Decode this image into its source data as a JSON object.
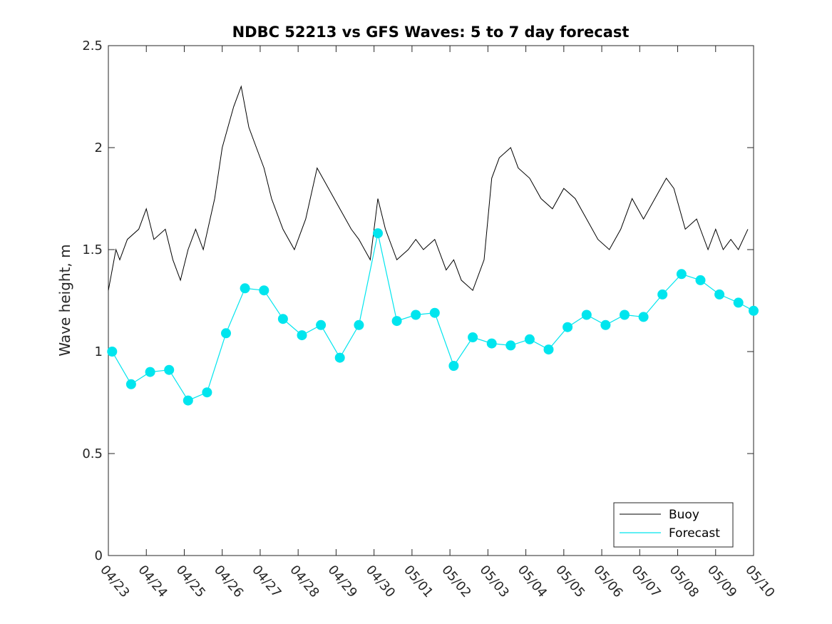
{
  "chart_data": {
    "type": "line",
    "title": "NDBC 52213 vs GFS Waves: 5 to 7 day forecast",
    "xlabel": "",
    "ylabel": "Wave height, m",
    "xlim": [
      "04/23",
      "05/10"
    ],
    "ylim": [
      0,
      2.5
    ],
    "x_ticks": [
      "04/23",
      "04/24",
      "04/25",
      "04/26",
      "04/27",
      "04/28",
      "04/29",
      "04/30",
      "05/01",
      "05/02",
      "05/03",
      "05/04",
      "05/05",
      "05/06",
      "05/07",
      "05/08",
      "05/09",
      "05/10"
    ],
    "y_ticks": [
      "0",
      "0.5",
      "1",
      "1.5",
      "2",
      "2.5"
    ],
    "legend": {
      "position": "bottom-right",
      "entries": [
        "Buoy",
        "Forecast"
      ]
    },
    "colors": {
      "buoy": "#000000",
      "forecast": "#00e5ee",
      "axes": "#262626"
    },
    "series": [
      {
        "name": "Buoy",
        "x_days": [
          0.0,
          0.1,
          0.2,
          0.3,
          0.5,
          0.8,
          1.0,
          1.2,
          1.5,
          1.7,
          1.9,
          2.1,
          2.3,
          2.5,
          2.8,
          3.0,
          3.3,
          3.5,
          3.7,
          3.9,
          4.1,
          4.3,
          4.6,
          4.9,
          5.2,
          5.5,
          5.8,
          6.1,
          6.4,
          6.6,
          6.9,
          7.1,
          7.3,
          7.6,
          7.9,
          8.1,
          8.3,
          8.6,
          8.9,
          9.1,
          9.3,
          9.6,
          9.9,
          10.1,
          10.3,
          10.6,
          10.8,
          11.1,
          11.4,
          11.7,
          12.0,
          12.3,
          12.6,
          12.9,
          13.2,
          13.5,
          13.8,
          14.1,
          14.4,
          14.7,
          14.9,
          15.2,
          15.5,
          15.8,
          16.0,
          16.2,
          16.4,
          16.6,
          16.85
        ],
        "values": [
          1.3,
          1.4,
          1.5,
          1.45,
          1.55,
          1.6,
          1.7,
          1.55,
          1.6,
          1.45,
          1.35,
          1.5,
          1.6,
          1.5,
          1.75,
          2.0,
          2.2,
          2.3,
          2.1,
          2.0,
          1.9,
          1.75,
          1.6,
          1.5,
          1.65,
          1.9,
          1.8,
          1.7,
          1.6,
          1.55,
          1.45,
          1.75,
          1.6,
          1.45,
          1.5,
          1.55,
          1.5,
          1.55,
          1.4,
          1.45,
          1.35,
          1.3,
          1.45,
          1.85,
          1.95,
          2.0,
          1.9,
          1.85,
          1.75,
          1.7,
          1.8,
          1.75,
          1.65,
          1.55,
          1.5,
          1.6,
          1.75,
          1.65,
          1.75,
          1.85,
          1.8,
          1.6,
          1.65,
          1.5,
          1.6,
          1.5,
          1.55,
          1.5,
          1.6
        ]
      },
      {
        "name": "Forecast",
        "x_days": [
          0.1,
          0.6,
          1.1,
          1.6,
          2.1,
          2.6,
          3.1,
          3.6,
          4.1,
          4.6,
          5.1,
          5.6,
          6.1,
          6.6,
          7.1,
          7.6,
          8.1,
          8.6,
          9.1,
          9.6,
          10.1,
          10.6,
          11.1,
          11.6,
          12.1,
          12.6,
          13.1,
          13.6,
          14.1,
          14.6,
          15.1,
          15.6,
          16.1,
          16.6,
          17.0
        ],
        "values": [
          1.0,
          0.84,
          0.9,
          0.91,
          0.76,
          0.8,
          1.09,
          1.31,
          1.3,
          1.16,
          1.08,
          1.13,
          0.97,
          1.13,
          1.58,
          1.15,
          1.18,
          1.19,
          0.93,
          1.07,
          1.04,
          1.03,
          1.06,
          1.01,
          1.12,
          1.18,
          1.13,
          1.18,
          1.17,
          1.28,
          1.38,
          1.35,
          1.28,
          1.24,
          1.2
        ]
      }
    ]
  }
}
